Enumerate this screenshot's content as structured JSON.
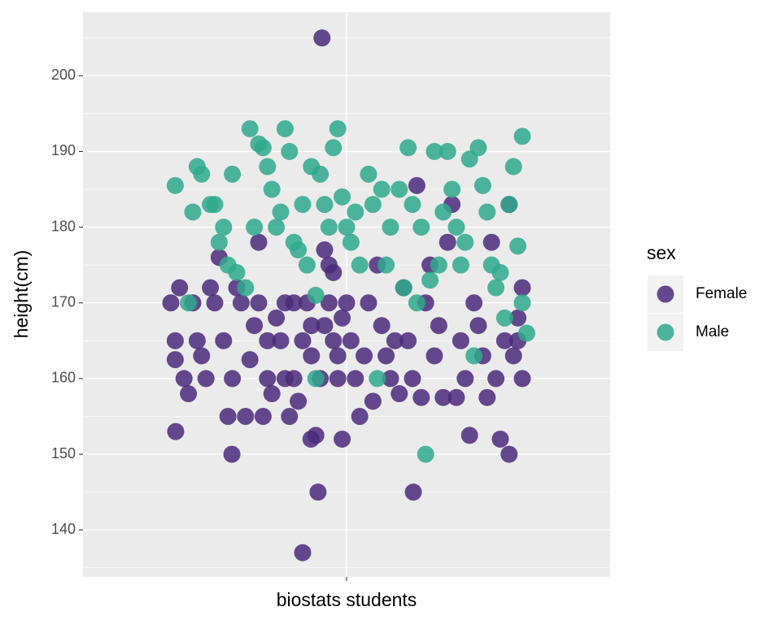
{
  "chart_data": {
    "type": "scatter",
    "y_label": "height(cm)",
    "legend_title": "sex",
    "legend_position": "right",
    "grid": true,
    "xlim": [
      0.4,
      1.6
    ],
    "xticks": [
      {
        "value": 1,
        "label": "biostats students"
      }
    ],
    "ylim": [
      133.8,
      208.4
    ],
    "yticks": [
      140,
      150,
      160,
      170,
      180,
      190,
      200
    ],
    "series": [
      {
        "name": "Female",
        "color": "#4b2a7b",
        "x": [
          0.6,
          0.62,
          0.61,
          0.61,
          0.63,
          0.64,
          0.65,
          0.66,
          0.67,
          0.68,
          0.69,
          0.7,
          0.71,
          0.72,
          0.73,
          0.74,
          0.75,
          0.76,
          0.77,
          0.78,
          0.79,
          0.8,
          0.81,
          0.82,
          0.83,
          0.84,
          0.85,
          0.86,
          0.87,
          0.88,
          0.89,
          0.9,
          0.91,
          0.92,
          0.93,
          0.94,
          0.95,
          0.96,
          0.97,
          0.98,
          0.99,
          1.0,
          0.92,
          0.9,
          0.935,
          0.944,
          0.919,
          0.611,
          0.739,
          0.96,
          0.95,
          0.97,
          0.98,
          0.99,
          1.01,
          1.02,
          1.03,
          1.04,
          1.05,
          1.06,
          1.07,
          1.08,
          1.09,
          1.1,
          1.11,
          1.12,
          1.13,
          1.14,
          1.15,
          1.16,
          1.152,
          1.17,
          1.18,
          1.19,
          1.2,
          1.21,
          1.22,
          1.23,
          1.24,
          1.25,
          1.26,
          1.27,
          1.28,
          1.29,
          1.3,
          1.31,
          1.32,
          1.33,
          1.34,
          1.35,
          1.36,
          1.37,
          1.38,
          1.39,
          1.4,
          1.4,
          1.37,
          1.39,
          0.8,
          0.82,
          0.86,
          0.88
        ],
        "values": [
          170,
          172,
          165,
          162.5,
          160,
          158,
          170,
          165,
          163,
          160,
          172,
          170,
          176,
          165,
          155,
          160,
          172,
          170,
          155,
          162.5,
          167,
          170,
          155,
          160,
          158,
          168,
          165,
          170,
          155,
          160,
          157,
          165,
          170,
          163,
          152.5,
          160,
          167,
          170,
          165,
          160,
          152,
          170,
          167,
          137,
          145,
          205,
          152,
          153,
          150,
          175,
          177,
          174,
          163,
          168,
          165,
          160,
          155,
          163,
          170,
          157,
          175,
          167,
          163,
          160,
          165,
          158,
          172,
          165,
          160,
          185.5,
          145,
          157.5,
          170,
          175,
          163,
          167,
          157.5,
          178,
          183,
          157.5,
          165,
          160,
          152.5,
          170,
          167,
          163,
          157.5,
          178,
          160,
          152,
          165,
          150,
          163,
          168,
          172,
          160,
          183,
          165,
          178,
          165,
          160,
          170
        ]
      },
      {
        "name": "Male",
        "color": "#2fa98c",
        "x": [
          0.61,
          0.64,
          0.65,
          0.66,
          0.67,
          0.69,
          0.7,
          0.71,
          0.72,
          0.73,
          0.74,
          0.75,
          0.77,
          0.78,
          0.79,
          0.8,
          0.81,
          0.82,
          0.83,
          0.84,
          0.85,
          0.86,
          0.87,
          0.88,
          0.89,
          0.9,
          0.91,
          0.92,
          0.93,
          0.93,
          0.94,
          0.95,
          0.96,
          0.97,
          0.98,
          0.99,
          1.0,
          1.01,
          1.02,
          1.03,
          1.05,
          1.06,
          1.07,
          1.08,
          1.09,
          1.1,
          1.12,
          1.13,
          1.14,
          1.15,
          1.16,
          1.17,
          1.18,
          1.19,
          1.2,
          1.21,
          1.22,
          1.23,
          1.24,
          1.25,
          1.26,
          1.27,
          1.28,
          1.29,
          1.3,
          1.31,
          1.32,
          1.33,
          1.34,
          1.35,
          1.36,
          1.37,
          1.38,
          1.39,
          1.4,
          1.41,
          1.4
        ],
        "values": [
          185.5,
          170,
          182,
          188,
          187,
          183,
          183,
          178,
          180,
          175,
          187,
          174,
          172,
          193,
          180,
          191,
          190.5,
          188,
          185,
          180,
          182,
          193,
          190,
          178,
          177,
          183,
          175,
          188,
          171,
          160,
          187,
          183,
          180,
          190.5,
          193,
          184,
          180,
          178,
          182,
          175,
          187,
          183,
          160,
          185,
          175,
          180,
          185,
          172,
          190.5,
          183,
          170,
          180,
          150,
          173,
          190,
          175,
          182,
          190,
          185,
          180,
          175,
          178,
          189,
          163,
          190.5,
          185.5,
          182,
          175,
          172,
          174,
          168,
          183,
          188,
          177.5,
          170,
          166,
          192
        ]
      }
    ]
  }
}
